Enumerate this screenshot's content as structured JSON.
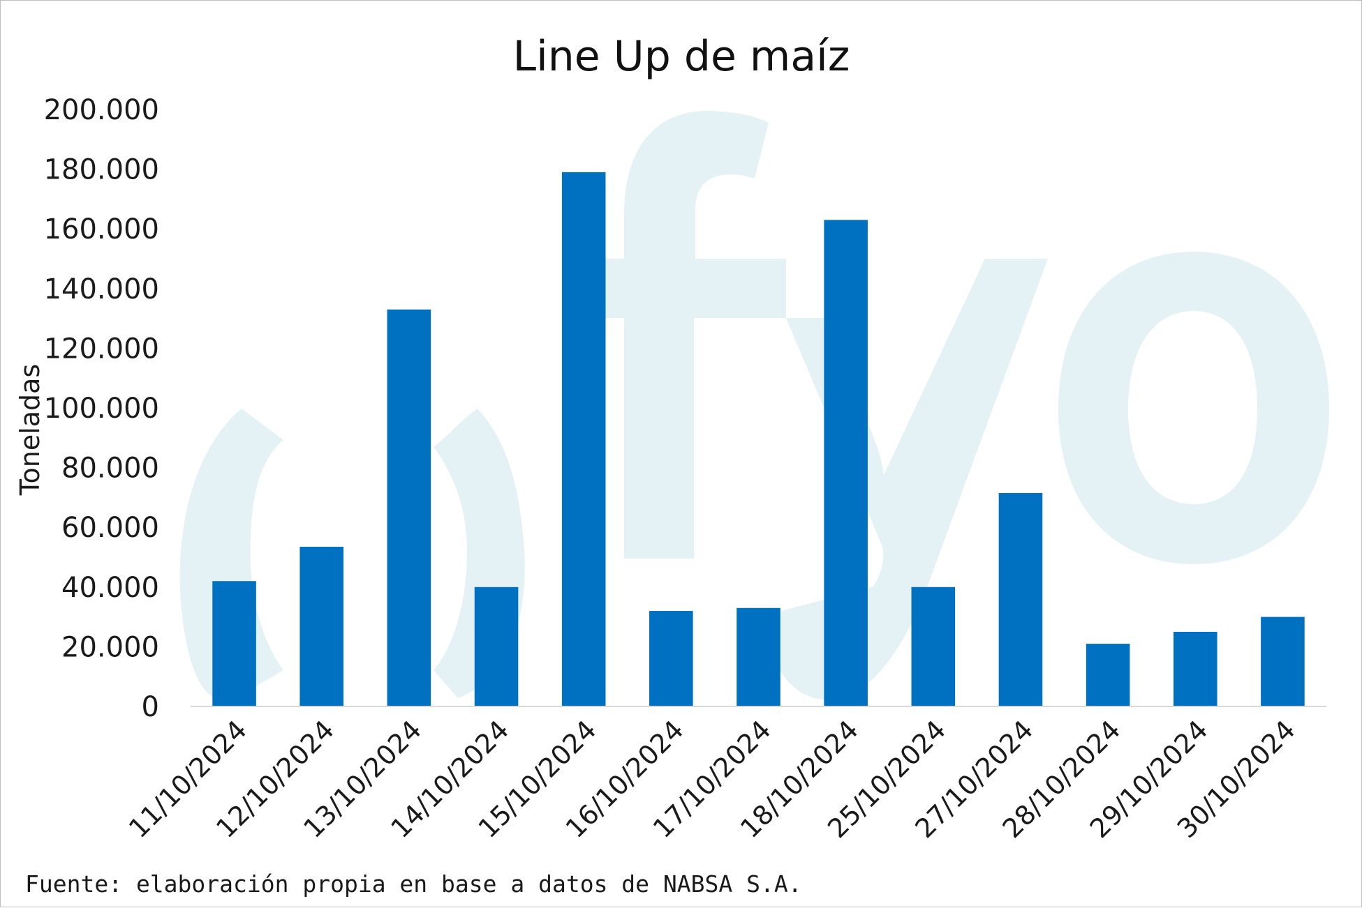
{
  "chart_data": {
    "type": "bar",
    "title": "Line Up de maíz",
    "ylabel": "Toneladas",
    "xlabel": "",
    "categories": [
      "11/10/2024",
      "12/10/2024",
      "13/10/2024",
      "14/10/2024",
      "15/10/2024",
      "16/10/2024",
      "17/10/2024",
      "18/10/2024",
      "25/10/2024",
      "27/10/2024",
      "28/10/2024",
      "29/10/2024",
      "30/10/2024"
    ],
    "values": [
      42000,
      53500,
      133000,
      40000,
      179000,
      32000,
      33000,
      163000,
      40000,
      71500,
      21000,
      25000,
      30000
    ],
    "ylim": [
      0,
      200000
    ],
    "yticks": [
      "0",
      "20.000",
      "40.000",
      "60.000",
      "80.000",
      "100.000",
      "120.000",
      "140.000",
      "160.000",
      "180.000",
      "200.000"
    ],
    "grid": false,
    "legend": "none",
    "bar_color": "#0070c0",
    "source": "Fuente: elaboración propia en base a datos de NABSA S.A."
  }
}
